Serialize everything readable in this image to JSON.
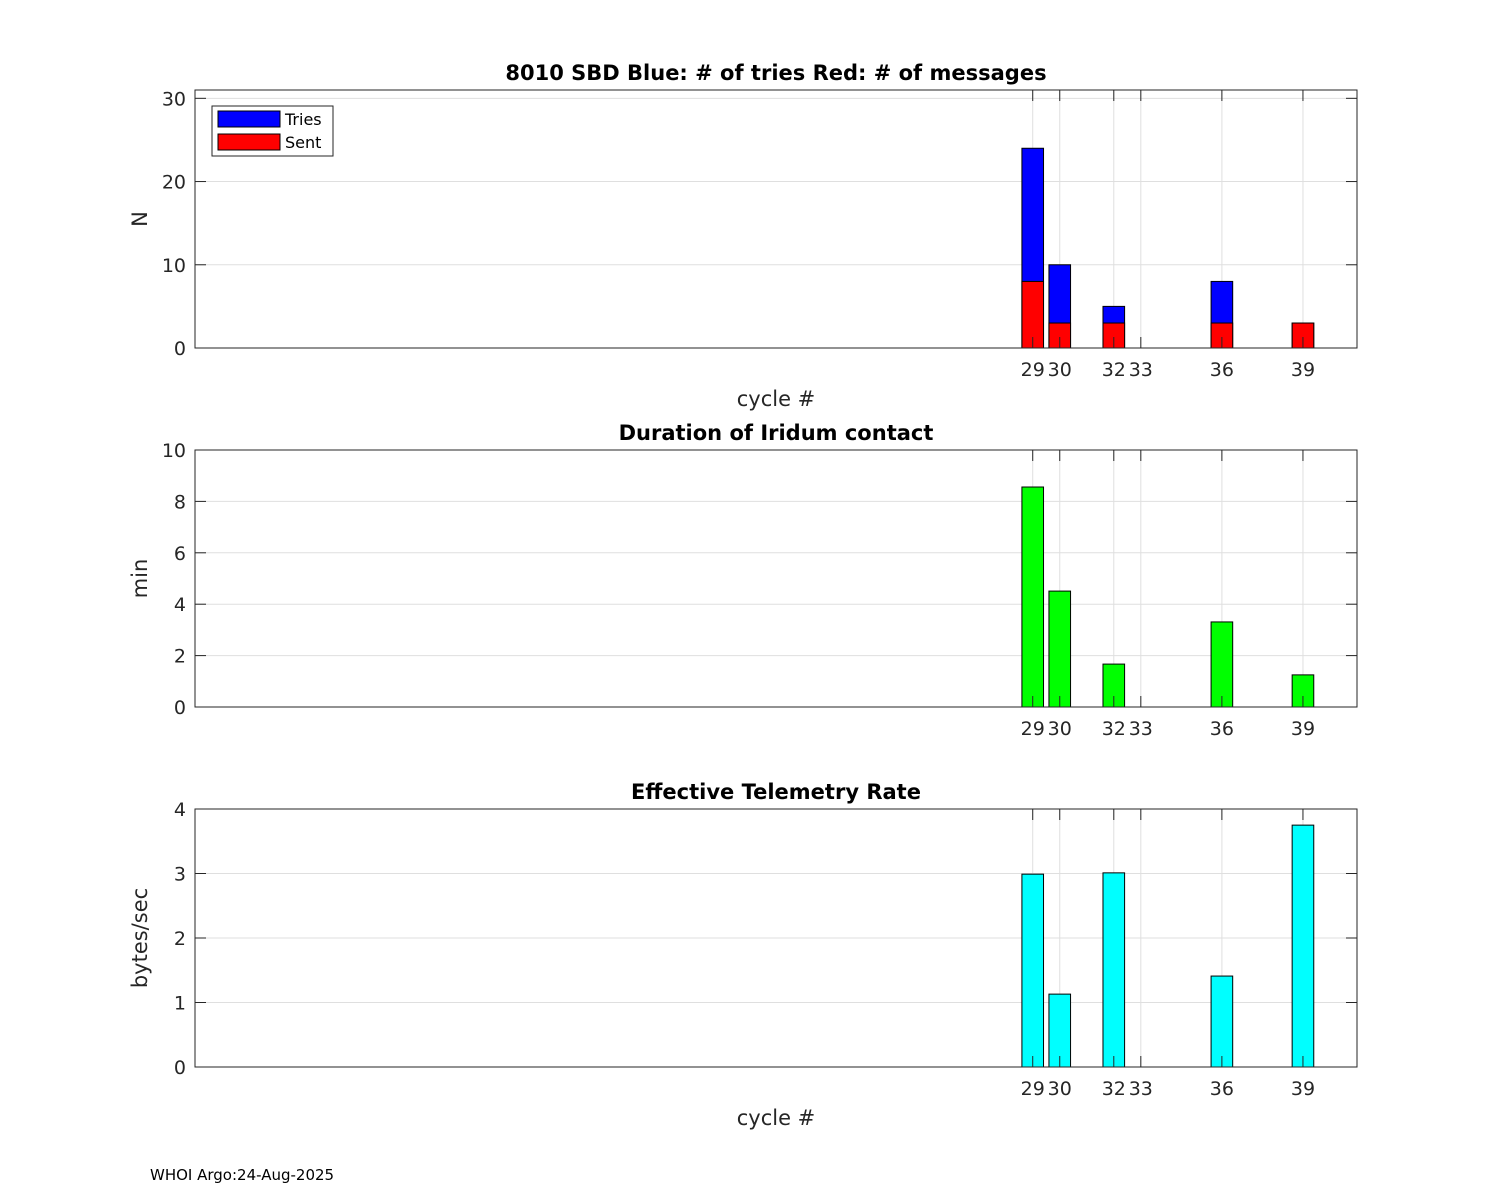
{
  "chart_data": [
    {
      "type": "bar",
      "title": "8010 SBD  Blue: # of tries   Red: # of messages",
      "xlabel": "cycle #",
      "ylabel": "N",
      "xlim": [
        -2,
        41
      ],
      "ylim": [
        0,
        31
      ],
      "yticks": [
        0,
        10,
        20,
        30
      ],
      "xticks": [
        29,
        30,
        32,
        33,
        36,
        39
      ],
      "grid": true,
      "legend": {
        "placement": "top-left",
        "entries": [
          "Tries",
          "Sent"
        ]
      },
      "x": [
        29,
        30,
        32,
        36,
        39
      ],
      "series": [
        {
          "name": "Tries",
          "color": "#0000ff",
          "values": [
            24,
            10,
            5,
            8,
            3
          ]
        },
        {
          "name": "Sent",
          "color": "#ff0000",
          "values": [
            8,
            3,
            3,
            3,
            3
          ]
        }
      ]
    },
    {
      "type": "bar",
      "title": "Duration of Iridum contact",
      "xlabel": "",
      "ylabel": "min",
      "xlim": [
        -2,
        41
      ],
      "ylim": [
        0,
        10
      ],
      "yticks": [
        0,
        2,
        4,
        6,
        8,
        10
      ],
      "xticks": [
        29,
        30,
        32,
        33,
        36,
        39
      ],
      "grid": true,
      "x": [
        29,
        30,
        32,
        36,
        39
      ],
      "series": [
        {
          "name": "Duration",
          "color": "#00ff00",
          "values": [
            8.56,
            4.51,
            1.67,
            3.31,
            1.25
          ]
        }
      ]
    },
    {
      "type": "bar",
      "title": "Effective Telemetry Rate",
      "xlabel": "cycle #",
      "ylabel": "bytes/sec",
      "xlim": [
        -2,
        41
      ],
      "ylim": [
        0,
        4
      ],
      "yticks": [
        0,
        1,
        2,
        3,
        4
      ],
      "xticks": [
        29,
        30,
        32,
        33,
        36,
        39
      ],
      "grid": true,
      "x": [
        29,
        30,
        32,
        36,
        39
      ],
      "series": [
        {
          "name": "Rate",
          "color": "#00ffff",
          "values": [
            2.99,
            1.13,
            3.01,
            1.41,
            3.75
          ]
        }
      ]
    }
  ],
  "footer": "WHOI Argo:24-Aug-2025"
}
